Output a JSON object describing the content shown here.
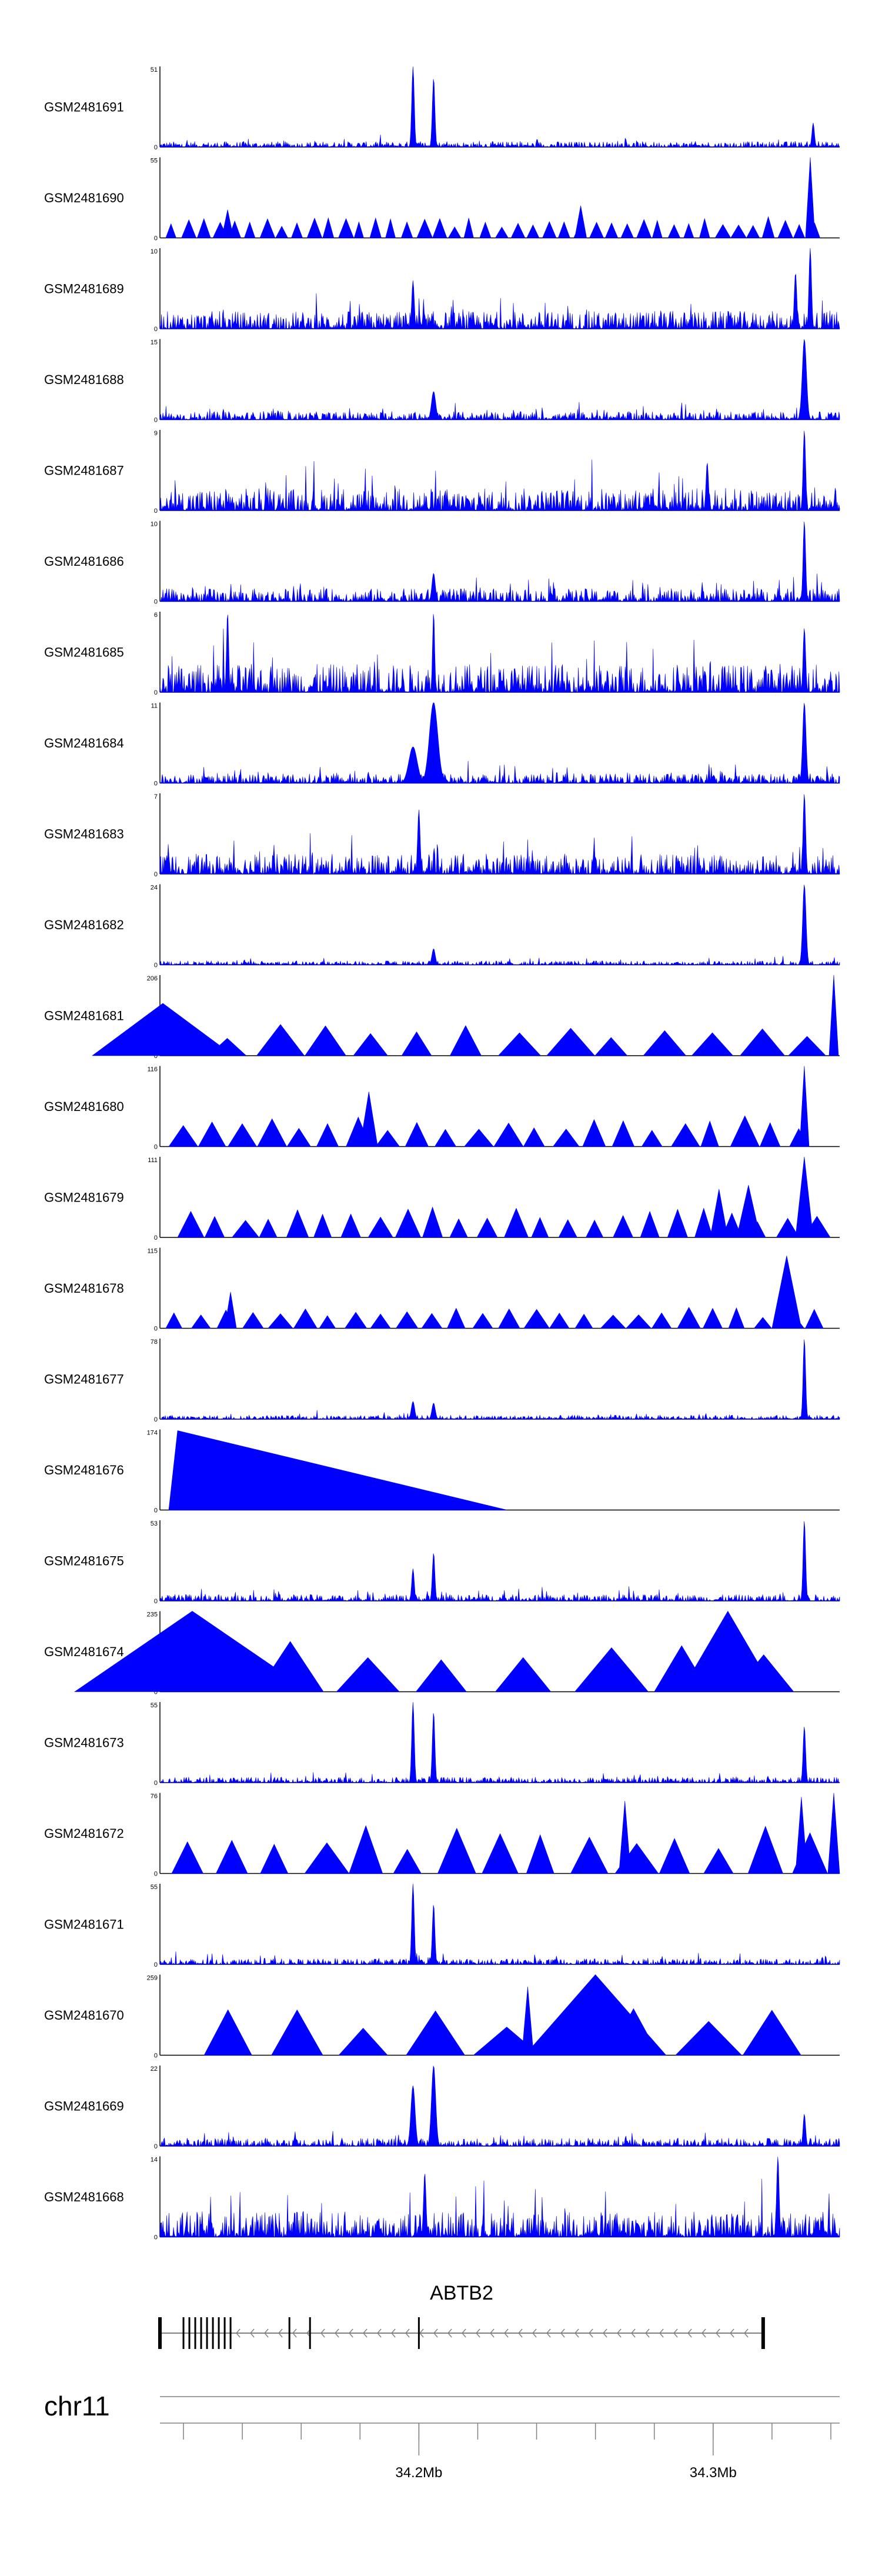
{
  "chart_data": {
    "type": "area",
    "colors": {
      "signal": "#0000ff",
      "axis": "#000000",
      "baseline": "#808080",
      "gene": "#000000"
    },
    "x_range_mb": [
      34.112,
      34.343
    ],
    "tracks": [
      {
        "name": "GSM2481691",
        "ymax_label": "51",
        "ymax": 51,
        "ymin_label": "0",
        "style": "spiky",
        "base": 0.07,
        "peaks": [
          [
            34.198,
            1.0,
            0.0006
          ],
          [
            34.205,
            0.86,
            0.0006
          ],
          [
            34.334,
            0.3,
            0.0006
          ]
        ]
      },
      {
        "name": "GSM2481690",
        "ymax_label": "55",
        "ymax": 55,
        "ymin_label": "0",
        "style": "tri",
        "x_start": 34.114,
        "x_end": 34.338,
        "pieces": 42,
        "height": 0.22,
        "peaks": [
          [
            34.333,
            1.0,
            0.0008
          ],
          [
            34.135,
            0.35,
            0.001
          ],
          [
            34.255,
            0.4,
            0.001
          ]
        ]
      },
      {
        "name": "GSM2481689",
        "ymax_label": "10",
        "ymax": 10,
        "ymin_label": "0",
        "style": "spiky",
        "base": 0.22,
        "peaks": [
          [
            34.333,
            1.0,
            0.0006
          ],
          [
            34.328,
            0.7,
            0.0006
          ],
          [
            34.198,
            0.6,
            0.0006
          ]
        ]
      },
      {
        "name": "GSM2481688",
        "ymax_label": "15",
        "ymax": 15,
        "ymin_label": "0",
        "style": "spiky",
        "base": 0.1,
        "peaks": [
          [
            34.331,
            1.0,
            0.001
          ],
          [
            34.205,
            0.35,
            0.001
          ]
        ]
      },
      {
        "name": "GSM2481687",
        "ymax_label": "9",
        "ymax": 9,
        "ymin_label": "0",
        "style": "spiky",
        "base": 0.28,
        "peaks": [
          [
            34.331,
            1.0,
            0.0006
          ],
          [
            34.298,
            0.6,
            0.0006
          ]
        ]
      },
      {
        "name": "GSM2481686",
        "ymax_label": "10",
        "ymax": 10,
        "ymin_label": "0",
        "style": "spiky",
        "base": 0.16,
        "peaks": [
          [
            34.331,
            1.0,
            0.0006
          ],
          [
            34.205,
            0.35,
            0.0008
          ]
        ]
      },
      {
        "name": "GSM2481685",
        "ymax_label": "6",
        "ymax": 6,
        "ymin_label": "0",
        "style": "spiky",
        "base": 0.35,
        "peaks": [
          [
            34.135,
            1.0,
            0.0005
          ],
          [
            34.205,
            1.0,
            0.0005
          ],
          [
            34.331,
            0.8,
            0.0006
          ]
        ]
      },
      {
        "name": "GSM2481684",
        "ymax_label": "11",
        "ymax": 11,
        "ymin_label": "0",
        "style": "spiky",
        "base": 0.12,
        "peaks": [
          [
            34.205,
            1.0,
            0.002
          ],
          [
            34.198,
            0.45,
            0.002
          ],
          [
            34.331,
            1.0,
            0.0008
          ]
        ]
      },
      {
        "name": "GSM2481683",
        "ymax_label": "7",
        "ymax": 7,
        "ymin_label": "0",
        "style": "spiky",
        "base": 0.25,
        "peaks": [
          [
            34.331,
            1.0,
            0.0006
          ],
          [
            34.2,
            0.8,
            0.0006
          ]
        ]
      },
      {
        "name": "GSM2481682",
        "ymax_label": "24",
        "ymax": 24,
        "ymin_label": "0",
        "style": "spiky",
        "base": 0.05,
        "peaks": [
          [
            34.331,
            1.0,
            0.0008
          ],
          [
            34.205,
            0.2,
            0.0008
          ]
        ]
      },
      {
        "name": "GSM2481681",
        "ymax_label": "206",
        "ymax": 206,
        "ymin_label": "0",
        "style": "tri",
        "x_start": 34.112,
        "x_end": 34.342,
        "pieces": 14,
        "height": 0.35,
        "peaks": [
          [
            34.113,
            0.65,
            0.012
          ],
          [
            34.341,
            1.0,
            0.0008
          ]
        ]
      },
      {
        "name": "GSM2481680",
        "ymax_label": "116",
        "ymax": 116,
        "ymin_label": "0",
        "style": "tri",
        "x_start": 34.115,
        "x_end": 34.336,
        "pieces": 22,
        "height": 0.32,
        "peaks": [
          [
            34.183,
            0.68,
            0.0015
          ],
          [
            34.331,
            1.0,
            0.0008
          ]
        ]
      },
      {
        "name": "GSM2481679",
        "ymax_label": "111",
        "ymax": 111,
        "ymin_label": "0",
        "style": "tri",
        "x_start": 34.118,
        "x_end": 34.34,
        "pieces": 24,
        "height": 0.32,
        "peaks": [
          [
            34.331,
            1.0,
            0.0015
          ],
          [
            34.312,
            0.65,
            0.002
          ],
          [
            34.302,
            0.6,
            0.0015
          ]
        ]
      },
      {
        "name": "GSM2481678",
        "ymax_label": "115",
        "ymax": 115,
        "ymin_label": "0",
        "style": "tri",
        "x_start": 34.114,
        "x_end": 34.34,
        "pieces": 26,
        "height": 0.22,
        "peaks": [
          [
            34.325,
            0.9,
            0.0025
          ],
          [
            34.136,
            0.45,
            0.001
          ]
        ]
      },
      {
        "name": "GSM2481677",
        "ymax_label": "78",
        "ymax": 78,
        "ymin_label": "0",
        "style": "spiky",
        "base": 0.05,
        "peaks": [
          [
            34.331,
            1.0,
            0.0006
          ],
          [
            34.198,
            0.22,
            0.0008
          ],
          [
            34.205,
            0.2,
            0.0008
          ]
        ]
      },
      {
        "name": "GSM2481676",
        "ymax_label": "174",
        "ymax": 174,
        "ymin_label": "0",
        "style": "wedge",
        "x_start": 34.115,
        "x_peak": 34.118,
        "x_end": 34.23
      },
      {
        "name": "GSM2481675",
        "ymax_label": "53",
        "ymax": 53,
        "ymin_label": "0",
        "style": "spiky",
        "base": 0.08,
        "peaks": [
          [
            34.331,
            1.0,
            0.0006
          ],
          [
            34.205,
            0.6,
            0.0006
          ],
          [
            34.198,
            0.4,
            0.0006
          ]
        ]
      },
      {
        "name": "GSM2481674",
        "ymax_label": "235",
        "ymax": 235,
        "ymin_label": "0",
        "style": "tri",
        "x_start": 34.118,
        "x_end": 34.334,
        "pieces": 8,
        "height": 0.55,
        "peaks": [
          [
            34.123,
            1.0,
            0.02
          ],
          [
            34.305,
            1.0,
            0.008
          ]
        ]
      },
      {
        "name": "GSM2481673",
        "ymax_label": "55",
        "ymax": 55,
        "ymin_label": "0",
        "style": "spiky",
        "base": 0.07,
        "peaks": [
          [
            34.198,
            1.0,
            0.0006
          ],
          [
            34.205,
            0.88,
            0.0006
          ],
          [
            34.331,
            0.7,
            0.0006
          ]
        ]
      },
      {
        "name": "GSM2481672",
        "ymax_label": "76",
        "ymax": 76,
        "ymin_label": "0",
        "style": "tri",
        "x_start": 34.116,
        "x_end": 34.342,
        "pieces": 15,
        "height": 0.5,
        "peaks": [
          [
            34.27,
            0.9,
            0.001
          ],
          [
            34.33,
            0.95,
            0.001
          ],
          [
            34.341,
            1.0,
            0.001
          ]
        ]
      },
      {
        "name": "GSM2481671",
        "ymax_label": "55",
        "ymax": 55,
        "ymin_label": "0",
        "style": "spiky",
        "base": 0.07,
        "peaks": [
          [
            34.198,
            1.0,
            0.0006
          ],
          [
            34.205,
            0.75,
            0.0006
          ]
        ]
      },
      {
        "name": "GSM2481670",
        "ymax_label": "259",
        "ymax": 259,
        "ymin_label": "0",
        "style": "tri",
        "x_start": 34.127,
        "x_end": 34.333,
        "pieces": 9,
        "height": 0.5,
        "peaks": [
          [
            34.237,
            0.85,
            0.001
          ],
          [
            34.26,
            1.0,
            0.012
          ]
        ]
      },
      {
        "name": "GSM2481669",
        "ymax_label": "22",
        "ymax": 22,
        "ymin_label": "0",
        "style": "spiky",
        "base": 0.1,
        "peaks": [
          [
            34.205,
            1.0,
            0.001
          ],
          [
            34.198,
            0.75,
            0.001
          ],
          [
            34.331,
            0.4,
            0.0006
          ]
        ]
      },
      {
        "name": "GSM2481668",
        "ymax_label": "14",
        "ymax": 14,
        "ymin_label": "0",
        "style": "spiky",
        "base": 0.32,
        "peaks": [
          [
            34.322,
            1.0,
            0.0006
          ],
          [
            34.202,
            0.8,
            0.0006
          ]
        ]
      }
    ],
    "gene": {
      "name": "ABTB2",
      "start_mb": 34.112,
      "end_mb": 34.317,
      "strand": "-",
      "exons_mb": [
        34.112,
        34.12,
        34.122,
        34.124,
        34.126,
        34.128,
        34.13,
        34.132,
        34.134,
        34.136,
        34.156,
        34.163,
        34.2,
        34.317
      ]
    },
    "axis": {
      "chromosome": "chr11",
      "tick_labels": [
        "34.2Mb",
        "34.3Mb"
      ],
      "labeled_ticks_mb": [
        34.2,
        34.3
      ],
      "minor_ticks_mb": [
        34.12,
        34.14,
        34.16,
        34.18,
        34.2,
        34.22,
        34.24,
        34.26,
        34.28,
        34.3,
        34.32,
        34.34
      ]
    }
  }
}
